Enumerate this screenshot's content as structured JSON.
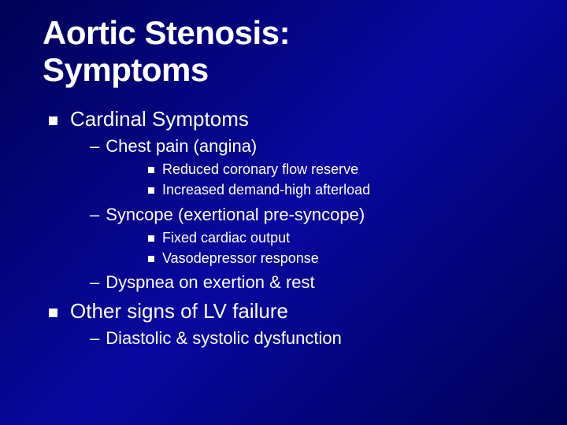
{
  "slide": {
    "title_line1": "Aortic Stenosis:",
    "title_line2": "Symptoms",
    "items": [
      {
        "text": "Cardinal Symptoms",
        "children": [
          {
            "text": "Chest pain (angina)",
            "children": [
              {
                "text": "Reduced coronary flow reserve"
              },
              {
                "text": "Increased demand-high afterload"
              }
            ]
          },
          {
            "text": "Syncope (exertional pre-syncope)",
            "children": [
              {
                "text": "Fixed cardiac output"
              },
              {
                "text": "Vasodepressor response"
              }
            ]
          },
          {
            "text": "Dyspnea on exertion & rest",
            "children": []
          }
        ]
      },
      {
        "text": "Other signs of LV failure",
        "children": [
          {
            "text": "Diastolic & systolic dysfunction",
            "children": []
          }
        ]
      }
    ]
  },
  "style": {
    "background_gradient": [
      "#000055",
      "#0808a0",
      "#000055"
    ],
    "text_color": "#ffffff",
    "title_fontsize": 42,
    "lvl1_fontsize": 26,
    "lvl2_fontsize": 22,
    "lvl3_fontsize": 18,
    "font_family": "Verdana"
  }
}
